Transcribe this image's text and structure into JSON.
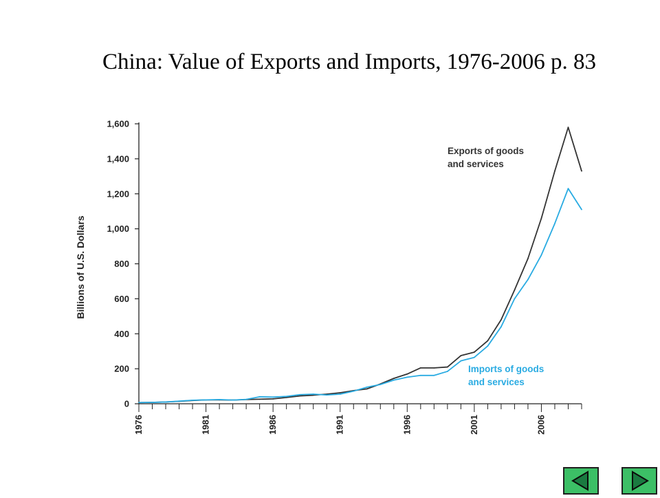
{
  "slide": {
    "title": "China: Value of Exports and Imports, 1976-2006 p. 83"
  },
  "chart_data": {
    "type": "line",
    "title": "",
    "xlabel": "",
    "ylabel": "Billions of U.S. Dollars",
    "xlim": [
      1976,
      2009
    ],
    "ylim": [
      0,
      1600
    ],
    "x_ticks": [
      "1976",
      "1981",
      "1986",
      "1991",
      "1996",
      "2001",
      "2006"
    ],
    "y_ticks": [
      "0",
      "200",
      "400",
      "600",
      "800",
      "1,000",
      "1,200",
      "1,400",
      "1,600"
    ],
    "grid": false,
    "x": [
      1976,
      1977,
      1978,
      1979,
      1980,
      1981,
      1982,
      1983,
      1984,
      1985,
      1986,
      1987,
      1988,
      1989,
      1990,
      1991,
      1992,
      1993,
      1994,
      1995,
      1996,
      1997,
      1998,
      1999,
      2000,
      2001,
      2002,
      2003,
      2004,
      2005,
      2006,
      2007,
      2008,
      2009
    ],
    "series": [
      {
        "name": "Exports of goods and services",
        "label_lines": [
          "Exports of goods",
          "and services"
        ],
        "color": "#333333",
        "values": [
          7,
          8,
          10,
          14,
          19,
          22,
          22,
          21,
          24,
          26,
          28,
          36,
          45,
          49,
          55,
          63,
          75,
          85,
          113,
          145,
          170,
          205,
          205,
          210,
          275,
          295,
          360,
          480,
          650,
          830,
          1060,
          1330,
          1580,
          1330
        ]
      },
      {
        "name": "Imports of goods and services",
        "label_lines": [
          "Imports of goods",
          "and services"
        ],
        "color": "#29abe2",
        "values": [
          7,
          8,
          10,
          15,
          20,
          22,
          24,
          21,
          25,
          40,
          38,
          42,
          52,
          55,
          50,
          55,
          72,
          95,
          110,
          135,
          152,
          162,
          162,
          185,
          245,
          265,
          330,
          440,
          600,
          710,
          850,
          1030,
          1230,
          1110
        ]
      }
    ]
  },
  "nav": {
    "prev_icon": "triangle-left-icon",
    "next_icon": "triangle-right-icon",
    "button_color": "#3cbf66"
  }
}
